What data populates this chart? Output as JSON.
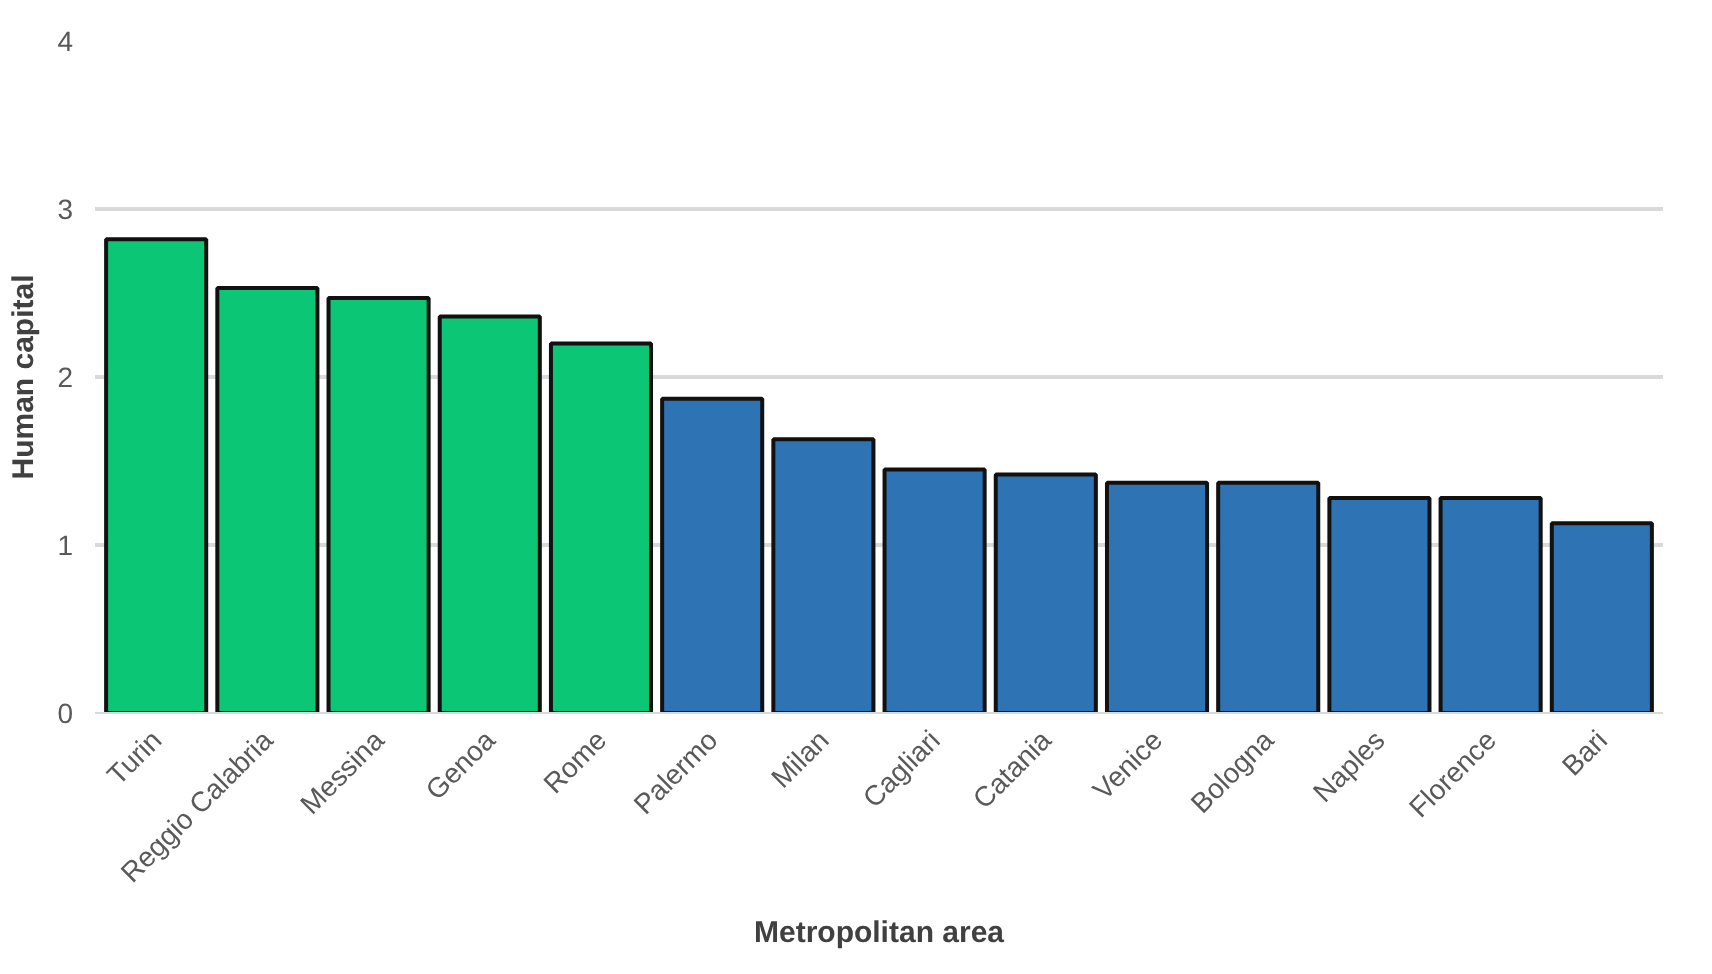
{
  "chart_data": {
    "type": "bar",
    "xlabel": "Metropolitan area",
    "ylabel": "Human capital",
    "categories": [
      "Turin",
      "Reggio Calabria",
      "Messina",
      "Genoa",
      "Rome",
      "Palermo",
      "Milan",
      "Cagliari",
      "Catania",
      "Venice",
      "Bologna",
      "Naples",
      "Florence",
      "Bari"
    ],
    "values": [
      2.82,
      2.53,
      2.47,
      2.36,
      2.2,
      1.87,
      1.63,
      1.45,
      1.42,
      1.37,
      1.37,
      1.28,
      1.28,
      1.13
    ],
    "colors": [
      "#0bc775",
      "#0bc775",
      "#0bc775",
      "#0bc775",
      "#0bc775",
      "#2e74b5",
      "#2e74b5",
      "#2e74b5",
      "#2e74b5",
      "#2e74b5",
      "#2e74b5",
      "#2e74b5",
      "#2e74b5",
      "#2e74b5"
    ],
    "ylim": [
      0,
      4
    ],
    "yticks": [
      0,
      1,
      2,
      3,
      4
    ],
    "grid": "y"
  }
}
